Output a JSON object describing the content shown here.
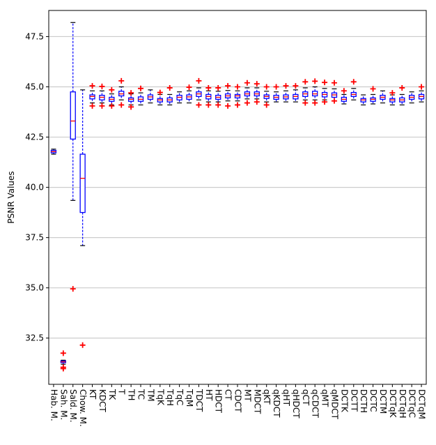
{
  "chart_data": {
    "type": "box",
    "ylabel": "PSNR Values",
    "xlabel": "",
    "ylim": [
      30.2,
      48.8
    ],
    "yticks": [
      32.5,
      35.0,
      37.5,
      40.0,
      42.5,
      45.0,
      47.5
    ],
    "ytick_labels": [
      "32.5",
      "35.0",
      "37.5",
      "40.0",
      "42.5",
      "45.0",
      "47.5"
    ],
    "grid": "horizontal",
    "colors": {
      "box": "#0000ff",
      "median": "#ff0000",
      "whisker": "#0000ff",
      "cap": "#000000",
      "flier": "#ff0000",
      "grid": "#cccccc"
    },
    "categories": [
      "Hab. M.",
      "Sah. M.",
      "Sald. M.",
      "Chow. M.",
      "KT",
      "KDCT",
      "TK",
      "T",
      "TH",
      "TC",
      "TM",
      "TqK",
      "TqH",
      "TqC",
      "TqM",
      "TDCT",
      "HT",
      "HDCT",
      "CT",
      "CDCT",
      "MT",
      "MDCT",
      "qKT",
      "qKDCT",
      "qHT",
      "qHDCT",
      "qCT",
      "qCDCT",
      "qMT",
      "qMDCT",
      "DCTK",
      "DCTT",
      "DCTH",
      "DCTC",
      "DCTM",
      "DCTqK",
      "DCTqH",
      "DCTqC",
      "DCTqM"
    ],
    "boxes": [
      {
        "whislo": 41.65,
        "q1": 41.72,
        "med": 41.78,
        "q3": 41.84,
        "whishi": 41.9,
        "fliers": []
      },
      {
        "whislo": 31.2,
        "q1": 31.28,
        "med": 31.32,
        "q3": 31.36,
        "whishi": 31.4,
        "fliers": [
          31.75,
          31.05,
          30.98
        ]
      },
      {
        "whislo": 39.35,
        "q1": 42.4,
        "med": 43.3,
        "q3": 44.75,
        "whishi": 48.2,
        "fliers": [
          34.95
        ]
      },
      {
        "whislo": 37.1,
        "q1": 38.75,
        "med": 40.45,
        "q3": 41.65,
        "whishi": 44.85,
        "fliers": [
          32.15
        ]
      },
      {
        "whislo": 44.2,
        "q1": 44.4,
        "med": 44.52,
        "q3": 44.6,
        "whishi": 44.8,
        "fliers": [
          45.05,
          44.05
        ]
      },
      {
        "whislo": 44.2,
        "q1": 44.35,
        "med": 44.48,
        "q3": 44.58,
        "whishi": 44.8,
        "fliers": [
          45.02,
          44.05
        ]
      },
      {
        "whislo": 44.1,
        "q1": 44.28,
        "med": 44.38,
        "q3": 44.48,
        "whishi": 44.65,
        "fliers": [
          44.85,
          44.05
        ]
      },
      {
        "whislo": 44.35,
        "q1": 44.55,
        "med": 44.65,
        "q3": 44.78,
        "whishi": 45.0,
        "fliers": [
          45.3,
          44.1
        ]
      },
      {
        "whislo": 44.1,
        "q1": 44.28,
        "med": 44.38,
        "q3": 44.45,
        "whishi": 44.65,
        "fliers": [
          44.7,
          44.0
        ]
      },
      {
        "whislo": 44.1,
        "q1": 44.28,
        "med": 44.38,
        "q3": 44.5,
        "whishi": 44.7,
        "fliers": [
          44.92
        ]
      },
      {
        "whislo": 44.2,
        "q1": 44.38,
        "med": 44.5,
        "q3": 44.6,
        "whishi": 44.85,
        "fliers": []
      },
      {
        "whislo": 44.1,
        "q1": 44.25,
        "med": 44.35,
        "q3": 44.42,
        "whishi": 44.62,
        "fliers": [
          44.72
        ]
      },
      {
        "whislo": 44.1,
        "q1": 44.25,
        "med": 44.35,
        "q3": 44.45,
        "whishi": 44.62,
        "fliers": [
          44.95
        ]
      },
      {
        "whislo": 44.2,
        "q1": 44.35,
        "med": 44.48,
        "q3": 44.58,
        "whishi": 44.75,
        "fliers": []
      },
      {
        "whislo": 44.2,
        "q1": 44.38,
        "med": 44.5,
        "q3": 44.6,
        "whishi": 44.8,
        "fliers": [
          44.98
        ]
      },
      {
        "whislo": 44.35,
        "q1": 44.52,
        "med": 44.65,
        "q3": 44.75,
        "whishi": 44.95,
        "fliers": [
          45.3,
          44.1
        ]
      },
      {
        "whislo": 44.25,
        "q1": 44.4,
        "med": 44.52,
        "q3": 44.62,
        "whishi": 44.8,
        "fliers": [
          44.95,
          44.1
        ]
      },
      {
        "whislo": 44.25,
        "q1": 44.38,
        "med": 44.48,
        "q3": 44.58,
        "whishi": 44.78,
        "fliers": [
          44.95,
          44.1
        ]
      },
      {
        "whislo": 44.3,
        "q1": 44.45,
        "med": 44.55,
        "q3": 44.65,
        "whishi": 44.82,
        "fliers": [
          45.05,
          44.05
        ]
      },
      {
        "whislo": 44.3,
        "q1": 44.45,
        "med": 44.55,
        "q3": 44.62,
        "whishi": 44.8,
        "fliers": [
          45.0,
          44.1
        ]
      },
      {
        "whislo": 44.4,
        "q1": 44.55,
        "med": 44.65,
        "q3": 44.75,
        "whishi": 44.95,
        "fliers": [
          45.2,
          44.2
        ]
      },
      {
        "whislo": 44.4,
        "q1": 44.55,
        "med": 44.65,
        "q3": 44.75,
        "whishi": 44.95,
        "fliers": [
          45.15,
          44.25
        ]
      },
      {
        "whislo": 44.25,
        "q1": 44.42,
        "med": 44.52,
        "q3": 44.6,
        "whishi": 44.78,
        "fliers": [
          45.0,
          44.1
        ]
      },
      {
        "whislo": 44.25,
        "q1": 44.38,
        "med": 44.48,
        "q3": 44.58,
        "whishi": 44.75,
        "fliers": [
          45.0
        ]
      },
      {
        "whislo": 44.25,
        "q1": 44.4,
        "med": 44.5,
        "q3": 44.6,
        "whishi": 44.8,
        "fliers": [
          45.05
        ]
      },
      {
        "whislo": 44.25,
        "q1": 44.4,
        "med": 44.52,
        "q3": 44.62,
        "whishi": 44.85,
        "fliers": [
          45.05
        ]
      },
      {
        "whislo": 44.35,
        "q1": 44.52,
        "med": 44.65,
        "q3": 44.75,
        "whishi": 44.95,
        "fliers": [
          45.25,
          44.2
        ]
      },
      {
        "whislo": 44.35,
        "q1": 44.55,
        "med": 44.65,
        "q3": 44.78,
        "whishi": 45.0,
        "fliers": [
          45.28,
          44.2
        ]
      },
      {
        "whislo": 44.35,
        "q1": 44.5,
        "med": 44.62,
        "q3": 44.72,
        "whishi": 44.92,
        "fliers": [
          45.22,
          44.25
        ]
      },
      {
        "whislo": 44.3,
        "q1": 44.48,
        "med": 44.6,
        "q3": 44.7,
        "whishi": 44.9,
        "fliers": [
          45.2,
          44.3
        ]
      },
      {
        "whislo": 44.15,
        "q1": 44.28,
        "med": 44.38,
        "q3": 44.48,
        "whishi": 44.62,
        "fliers": [
          44.8
        ]
      },
      {
        "whislo": 44.35,
        "q1": 44.52,
        "med": 44.62,
        "q3": 44.72,
        "whishi": 44.92,
        "fliers": [
          45.25
        ]
      },
      {
        "whislo": 44.1,
        "q1": 44.25,
        "med": 44.35,
        "q3": 44.42,
        "whishi": 44.6,
        "fliers": []
      },
      {
        "whislo": 44.15,
        "q1": 44.28,
        "med": 44.38,
        "q3": 44.45,
        "whishi": 44.62,
        "fliers": [
          44.9
        ]
      },
      {
        "whislo": 44.2,
        "q1": 44.38,
        "med": 44.48,
        "q3": 44.58,
        "whishi": 44.8,
        "fliers": []
      },
      {
        "whislo": 44.1,
        "q1": 44.25,
        "med": 44.35,
        "q3": 44.42,
        "whishi": 44.6,
        "fliers": [
          44.7
        ]
      },
      {
        "whislo": 44.1,
        "q1": 44.25,
        "med": 44.35,
        "q3": 44.45,
        "whishi": 44.62,
        "fliers": [
          44.95
        ]
      },
      {
        "whislo": 44.2,
        "q1": 44.38,
        "med": 44.48,
        "q3": 44.58,
        "whishi": 44.75,
        "fliers": []
      },
      {
        "whislo": 44.25,
        "q1": 44.4,
        "med": 44.52,
        "q3": 44.62,
        "whishi": 44.8,
        "fliers": [
          45.0
        ]
      }
    ]
  }
}
